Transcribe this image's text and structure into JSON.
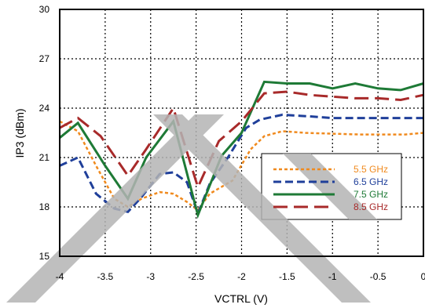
{
  "chart_data": {
    "type": "line",
    "xlabel": "VCTRL (V)",
    "ylabel": "IP3 (dBm)",
    "xlim": [
      -4,
      0
    ],
    "ylim": [
      15,
      30
    ],
    "xticks": [
      -4,
      -3.5,
      -3,
      -2.5,
      -2,
      -1.5,
      -1,
      -0.5,
      0
    ],
    "xtick_labels": [
      "-4",
      "-3.5",
      "-3",
      "-2.5",
      "-2",
      "-1.5",
      "-1",
      "-0.5",
      "0"
    ],
    "yticks": [
      15,
      18,
      21,
      24,
      27,
      30
    ],
    "ytick_labels": [
      "15",
      "18",
      "21",
      "24",
      "27",
      "30"
    ],
    "grid": true,
    "legend_position": "right",
    "watermark_color": "#b4b4b4",
    "series": [
      {
        "name": "5.5 GHz",
        "color": "#f08a1e",
        "dash": "short-dash",
        "x": [
          -4,
          -3.8,
          -3.6,
          -3.4,
          -3.25,
          -3.1,
          -2.9,
          -2.75,
          -2.6,
          -2.48,
          -2.35,
          -2.1,
          -1.9,
          -1.75,
          -1.55,
          -1.3,
          -1.0,
          -0.7,
          -0.4,
          -0.2,
          0
        ],
        "y": [
          23.2,
          22.6,
          20.5,
          18.5,
          18.0,
          18.5,
          18.9,
          18.8,
          18.3,
          17.8,
          18.8,
          19.6,
          21.5,
          22.3,
          22.6,
          22.5,
          22.45,
          22.4,
          22.4,
          22.4,
          22.5
        ]
      },
      {
        "name": "6.5 GHz",
        "color": "#1f3f9a",
        "dash": "long-dash",
        "x": [
          -4,
          -3.8,
          -3.6,
          -3.4,
          -3.25,
          -3.1,
          -2.9,
          -2.75,
          -2.6,
          -2.48,
          -2.35,
          -2.15,
          -1.95,
          -1.8,
          -1.55,
          -1.25,
          -1.0,
          -0.7,
          -0.4,
          -0.2,
          0
        ],
        "y": [
          20.5,
          21.0,
          18.8,
          17.9,
          17.7,
          18.6,
          20.0,
          20.1,
          19.5,
          17.6,
          19.4,
          21.0,
          22.8,
          23.3,
          23.6,
          23.5,
          23.4,
          23.4,
          23.4,
          23.4,
          23.4
        ]
      },
      {
        "name": "7.5 GHz",
        "color": "#1e7a36",
        "dash": "solid",
        "x": [
          -4,
          -3.8,
          -3.5,
          -3.25,
          -3.05,
          -2.75,
          -2.48,
          -2.22,
          -2.0,
          -1.75,
          -1.5,
          -1.25,
          -1.0,
          -0.75,
          -0.5,
          -0.25,
          0
        ],
        "y": [
          22.2,
          23.1,
          20.5,
          18.5,
          21.0,
          23.2,
          17.5,
          21.1,
          22.5,
          25.6,
          25.5,
          25.5,
          25.2,
          25.5,
          25.2,
          25.1,
          25.5
        ]
      },
      {
        "name": "8.5 GHz",
        "color": "#a82a2a",
        "dash": "long-long-dash",
        "x": [
          -4,
          -3.8,
          -3.55,
          -3.25,
          -3.05,
          -2.75,
          -2.48,
          -2.25,
          -2.0,
          -1.75,
          -1.5,
          -1.25,
          -1.0,
          -0.75,
          -0.5,
          -0.25,
          0
        ],
        "y": [
          22.8,
          23.4,
          22.3,
          19.9,
          21.5,
          24.0,
          19.2,
          22.0,
          23.2,
          24.9,
          25.0,
          24.8,
          24.7,
          24.6,
          24.6,
          24.5,
          24.8
        ]
      }
    ]
  }
}
